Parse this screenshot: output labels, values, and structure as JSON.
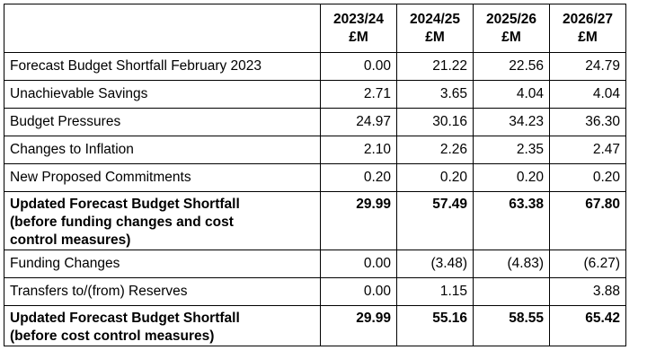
{
  "table": {
    "columns": [
      {
        "year": "2023/24",
        "unit": "£M"
      },
      {
        "year": "2024/25",
        "unit": "£M"
      },
      {
        "year": "2025/26",
        "unit": "£M"
      },
      {
        "year": "2026/27",
        "unit": "£M"
      }
    ],
    "rows": [
      {
        "label": "Forecast Budget Shortfall February 2023",
        "values": [
          "0.00",
          "21.22",
          "22.56",
          "24.79"
        ]
      },
      {
        "label": "Unachievable Savings",
        "values": [
          "2.71",
          "3.65",
          "4.04",
          "4.04"
        ]
      },
      {
        "label": "Budget Pressures",
        "values": [
          "24.97",
          "30.16",
          "34.23",
          "36.30"
        ]
      },
      {
        "label": "Changes to Inflation",
        "values": [
          "2.10",
          "2.26",
          "2.35",
          "2.47"
        ]
      },
      {
        "label": "New Proposed Commitments",
        "values": [
          "0.20",
          "0.20",
          "0.20",
          "0.20"
        ]
      },
      {
        "label_lines": [
          "Updated Forecast Budget Shortfall",
          "(before funding changes and cost",
          "control measures)"
        ],
        "values": [
          "29.99",
          "57.49",
          "63.38",
          "67.80"
        ]
      },
      {
        "label": "Funding Changes",
        "values": [
          "0.00",
          "(3.48)",
          "(4.83)",
          "(6.27)"
        ]
      },
      {
        "label": "Transfers to/(from) Reserves",
        "values": [
          "0.00",
          "1.15",
          "",
          "3.88"
        ]
      },
      {
        "label_lines": [
          "Updated Forecast Budget Shortfall",
          "(before cost control measures)"
        ],
        "values": [
          "29.99",
          "55.16",
          "58.55",
          "65.42"
        ]
      }
    ]
  }
}
